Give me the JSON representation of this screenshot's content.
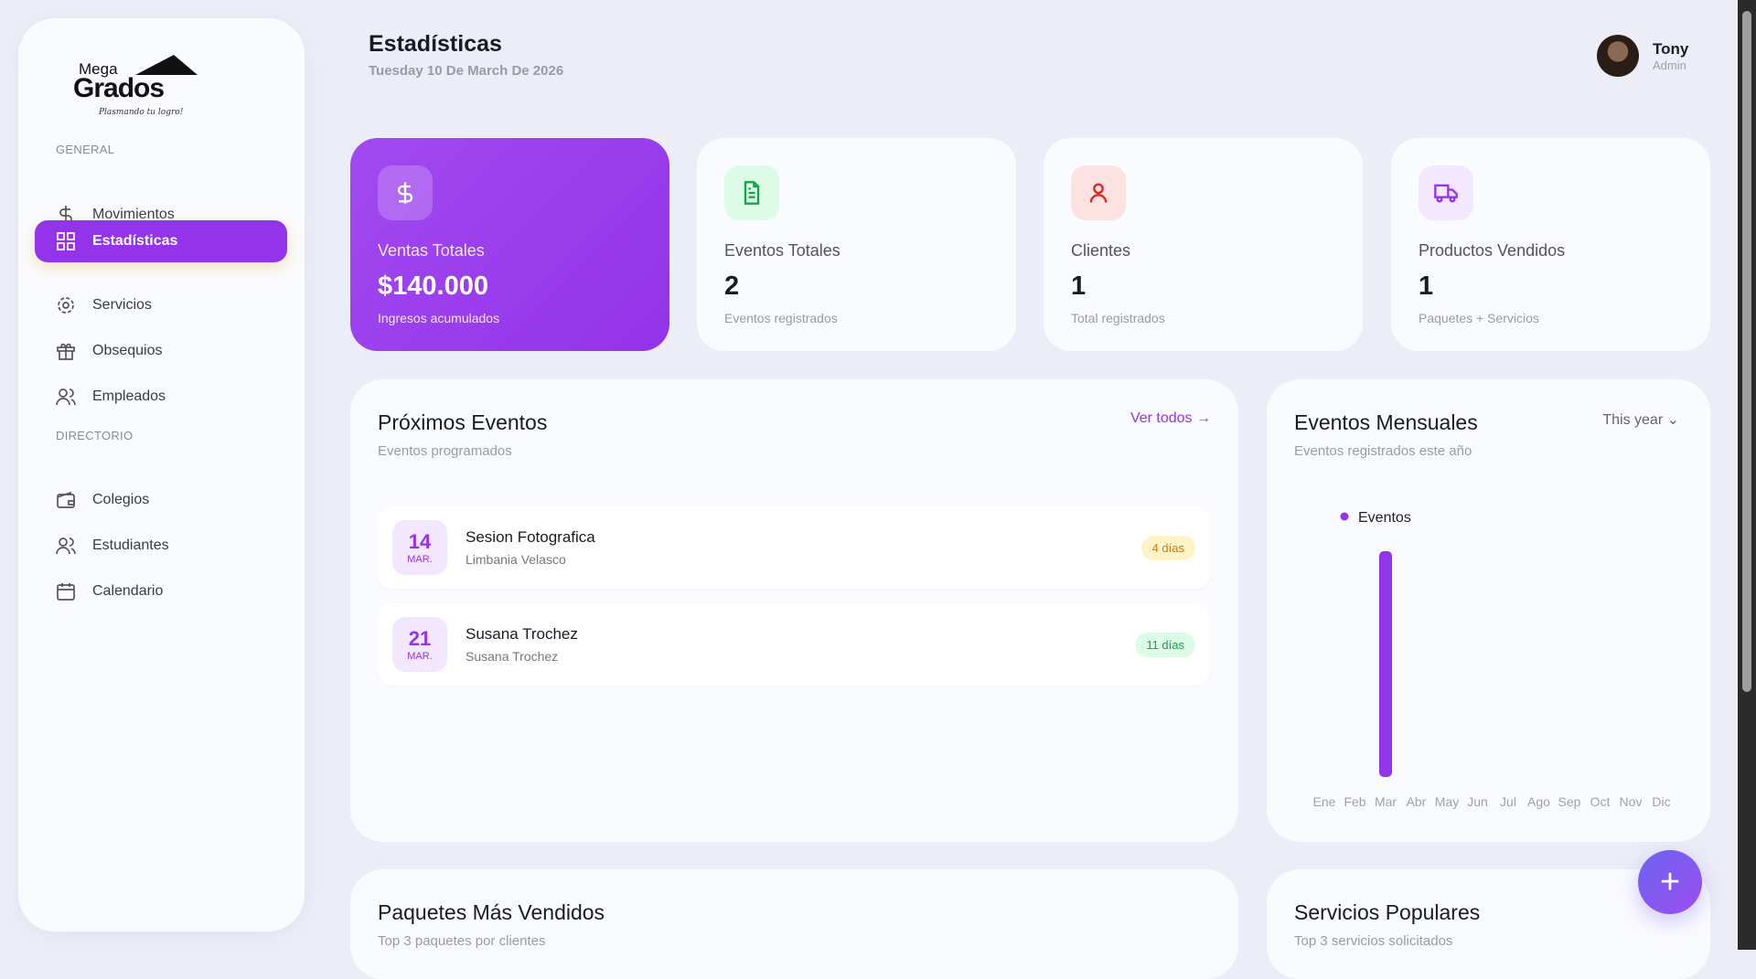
{
  "sidebar": {
    "logo": {
      "line1": "Mega",
      "line2": "Grados",
      "tagline": "Plasmando tu logro!"
    },
    "sections": [
      "GENERAL",
      "DIRECTORIO"
    ],
    "items": [
      {
        "label": "Movimientos",
        "icon": "dollar-icon"
      },
      {
        "label": "Estadísticas",
        "icon": "grid-icon",
        "active": true
      },
      {
        "label": "Servicios",
        "icon": "gear-icon"
      },
      {
        "label": "Obsequios",
        "icon": "gift-icon"
      },
      {
        "label": "Empleados",
        "icon": "users-icon"
      },
      {
        "label": "Colegios",
        "icon": "wallet-icon"
      },
      {
        "label": "Estudiantes",
        "icon": "users-icon"
      },
      {
        "label": "Calendario",
        "icon": "calendar-icon"
      }
    ]
  },
  "header": {
    "title": "Estadísticas",
    "date": "Tuesday 10 De March De 2026",
    "user": {
      "name": "Tony",
      "role": "Admin"
    }
  },
  "stats": [
    {
      "label": "Ventas Totales",
      "value": "$140.000",
      "sub": "Ingresos acumulados",
      "icon": "dollar-icon",
      "color": "#9333ea"
    },
    {
      "label": "Eventos Totales",
      "value": "2",
      "sub": "Eventos registrados",
      "icon": "document-icon",
      "color": "#16a34a"
    },
    {
      "label": "Clientes",
      "value": "1",
      "sub": "Total registrados",
      "icon": "user-icon",
      "color": "#dc2626"
    },
    {
      "label": "Productos Vendidos",
      "value": "1",
      "sub": "Paquetes + Servicios",
      "icon": "truck-icon",
      "color": "#9333ea"
    }
  ],
  "upcoming": {
    "title": "Próximos Eventos",
    "subtitle": "Eventos programados",
    "link": "Ver todos →",
    "events": [
      {
        "day": "14",
        "month": "MAR.",
        "name": "Sesion Fotografica",
        "client": "Limbania Velasco",
        "badge": "4 días",
        "badge_color": "#d97706"
      },
      {
        "day": "21",
        "month": "MAR.",
        "name": "Susana Trochez",
        "client": "Susana Trochez",
        "badge": "11 días",
        "badge_color": "#16a34a"
      }
    ]
  },
  "monthly": {
    "title": "Eventos Mensuales",
    "subtitle": "Eventos registrados este año",
    "filter": "This year"
  },
  "chart_data": {
    "type": "bar",
    "categories": [
      "Ene",
      "Feb",
      "Mar",
      "Abr",
      "May",
      "Jun",
      "Jul",
      "Ago",
      "Sep",
      "Oct",
      "Nov",
      "Dic"
    ],
    "series": [
      {
        "name": "Eventos",
        "values": [
          0,
          0,
          2,
          0,
          0,
          0,
          0,
          0,
          0,
          0,
          0,
          0
        ],
        "color": "#9333ea"
      }
    ],
    "legend": "top-left",
    "grid": false
  },
  "bottom": [
    {
      "title": "Paquetes Más Vendidos",
      "subtitle": "Top 3 paquetes por clientes"
    },
    {
      "title": "Servicios Populares",
      "subtitle": "Top 3 servicios solicitados"
    }
  ],
  "fab": {
    "label": "+"
  }
}
